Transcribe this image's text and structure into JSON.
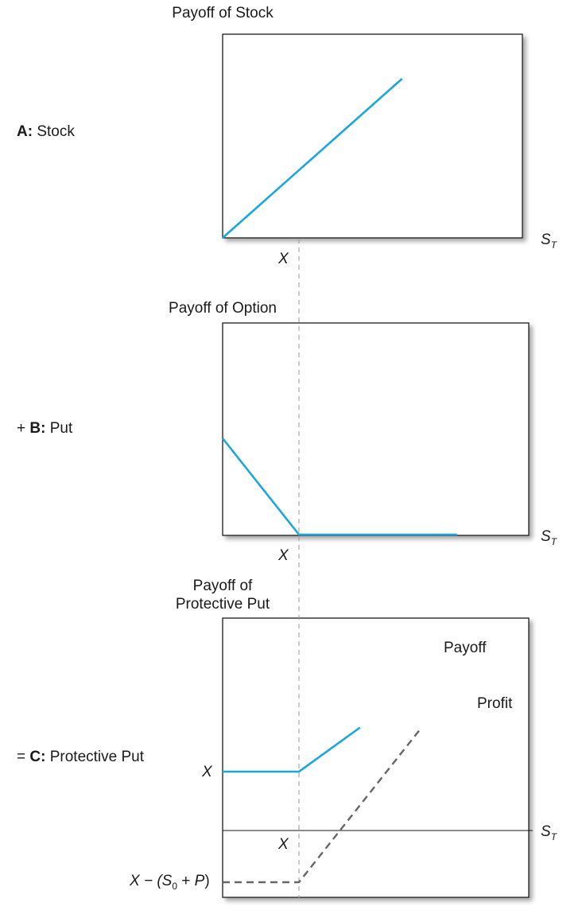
{
  "panels": {
    "a": {
      "prefix": "",
      "letter": "A:",
      "name": "Stock"
    },
    "b": {
      "prefix": "+",
      "letter": "B:",
      "name": "Put"
    },
    "c": {
      "prefix": "=",
      "letter": "C:",
      "name": "Protective Put"
    }
  },
  "colors": {
    "payoff": "#1aa7e0",
    "profit": "#666666",
    "frame": "#1a1a1a",
    "guide": "#999999"
  },
  "chart_data": [
    {
      "type": "line",
      "title": "Payoff of Stock",
      "xlabel": "S",
      "xlabel_sub": "T",
      "x_tick_label": "X",
      "series": [
        {
          "style": "solid",
          "x": [
            0,
            2.35
          ],
          "y": [
            0,
            1.0
          ]
        }
      ]
    },
    {
      "type": "line",
      "title": "Payoff of Option",
      "xlabel": "S",
      "xlabel_sub": "T",
      "x_tick_label": "X",
      "series": [
        {
          "style": "solid",
          "x": [
            0,
            1,
            3.07
          ],
          "y": [
            1.0,
            0,
            0
          ]
        }
      ]
    },
    {
      "type": "line",
      "title_lines": [
        "Payoff of",
        "Protective Put"
      ],
      "xlabel": "S",
      "xlabel_sub": "T",
      "x_tick_label": "X",
      "y_tick_labels": {
        "upper": "X",
        "lower_prefix": "X − (S",
        "lower_sub": "0",
        "lower_mid": " + ",
        "lower_p": "P",
        "lower_suffix": ")"
      },
      "series": [
        {
          "name": "Payoff",
          "style": "solid",
          "x": [
            0,
            1,
            1.8
          ],
          "y": [
            1.0,
            1.0,
            1.75
          ]
        },
        {
          "name": "Profit",
          "style": "dashed",
          "x": [
            0,
            1,
            2.6
          ],
          "y": [
            -0.5,
            -0.5,
            0.99
          ]
        }
      ]
    }
  ]
}
